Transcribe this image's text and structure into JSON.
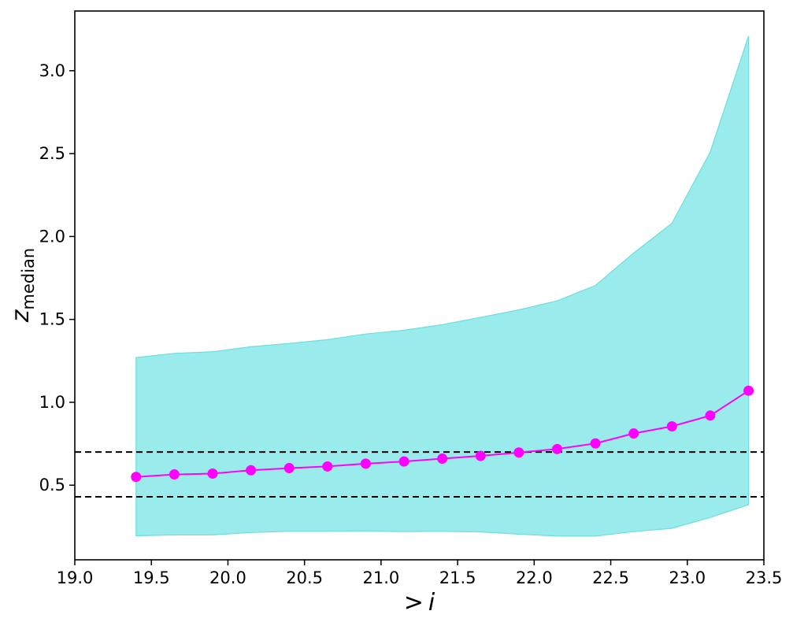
{
  "chart_data": {
    "type": "line",
    "xlabel_prefix": ">",
    "xlabel_var": "i",
    "ylabel_var": "z",
    "ylabel_sub": "median",
    "xlim": [
      19.0,
      23.5
    ],
    "ylim": [
      0.05,
      3.36
    ],
    "xticks": [
      "19.0",
      "19.5",
      "20.0",
      "20.5",
      "21.0",
      "21.5",
      "22.0",
      "22.5",
      "23.0",
      "23.5"
    ],
    "yticks": [
      "0.5",
      "1.0",
      "1.5",
      "2.0",
      "2.5",
      "3.0"
    ],
    "grid": false,
    "hlines": [
      0.7,
      0.43
    ],
    "x": [
      19.4,
      19.65,
      19.9,
      20.15,
      20.4,
      20.65,
      20.9,
      21.15,
      21.4,
      21.65,
      21.9,
      22.15,
      22.4,
      22.65,
      22.9,
      23.15,
      23.4
    ],
    "series": [
      {
        "values": [
          0.55,
          0.565,
          0.57,
          0.59,
          0.603,
          0.613,
          0.63,
          0.643,
          0.66,
          0.677,
          0.697,
          0.718,
          0.752,
          0.812,
          0.855,
          0.92,
          1.07
        ],
        "color": "#ff00ff"
      }
    ],
    "band": {
      "upper": [
        1.27,
        1.295,
        1.305,
        1.335,
        1.355,
        1.378,
        1.412,
        1.435,
        1.468,
        1.512,
        1.558,
        1.612,
        1.705,
        1.9,
        2.08,
        2.51,
        3.21
      ],
      "lower": [
        0.195,
        0.2,
        0.2,
        0.215,
        0.222,
        0.222,
        0.224,
        0.22,
        0.222,
        0.218,
        0.205,
        0.193,
        0.193,
        0.22,
        0.24,
        0.305,
        0.383
      ],
      "color": "#9aebeb"
    }
  }
}
